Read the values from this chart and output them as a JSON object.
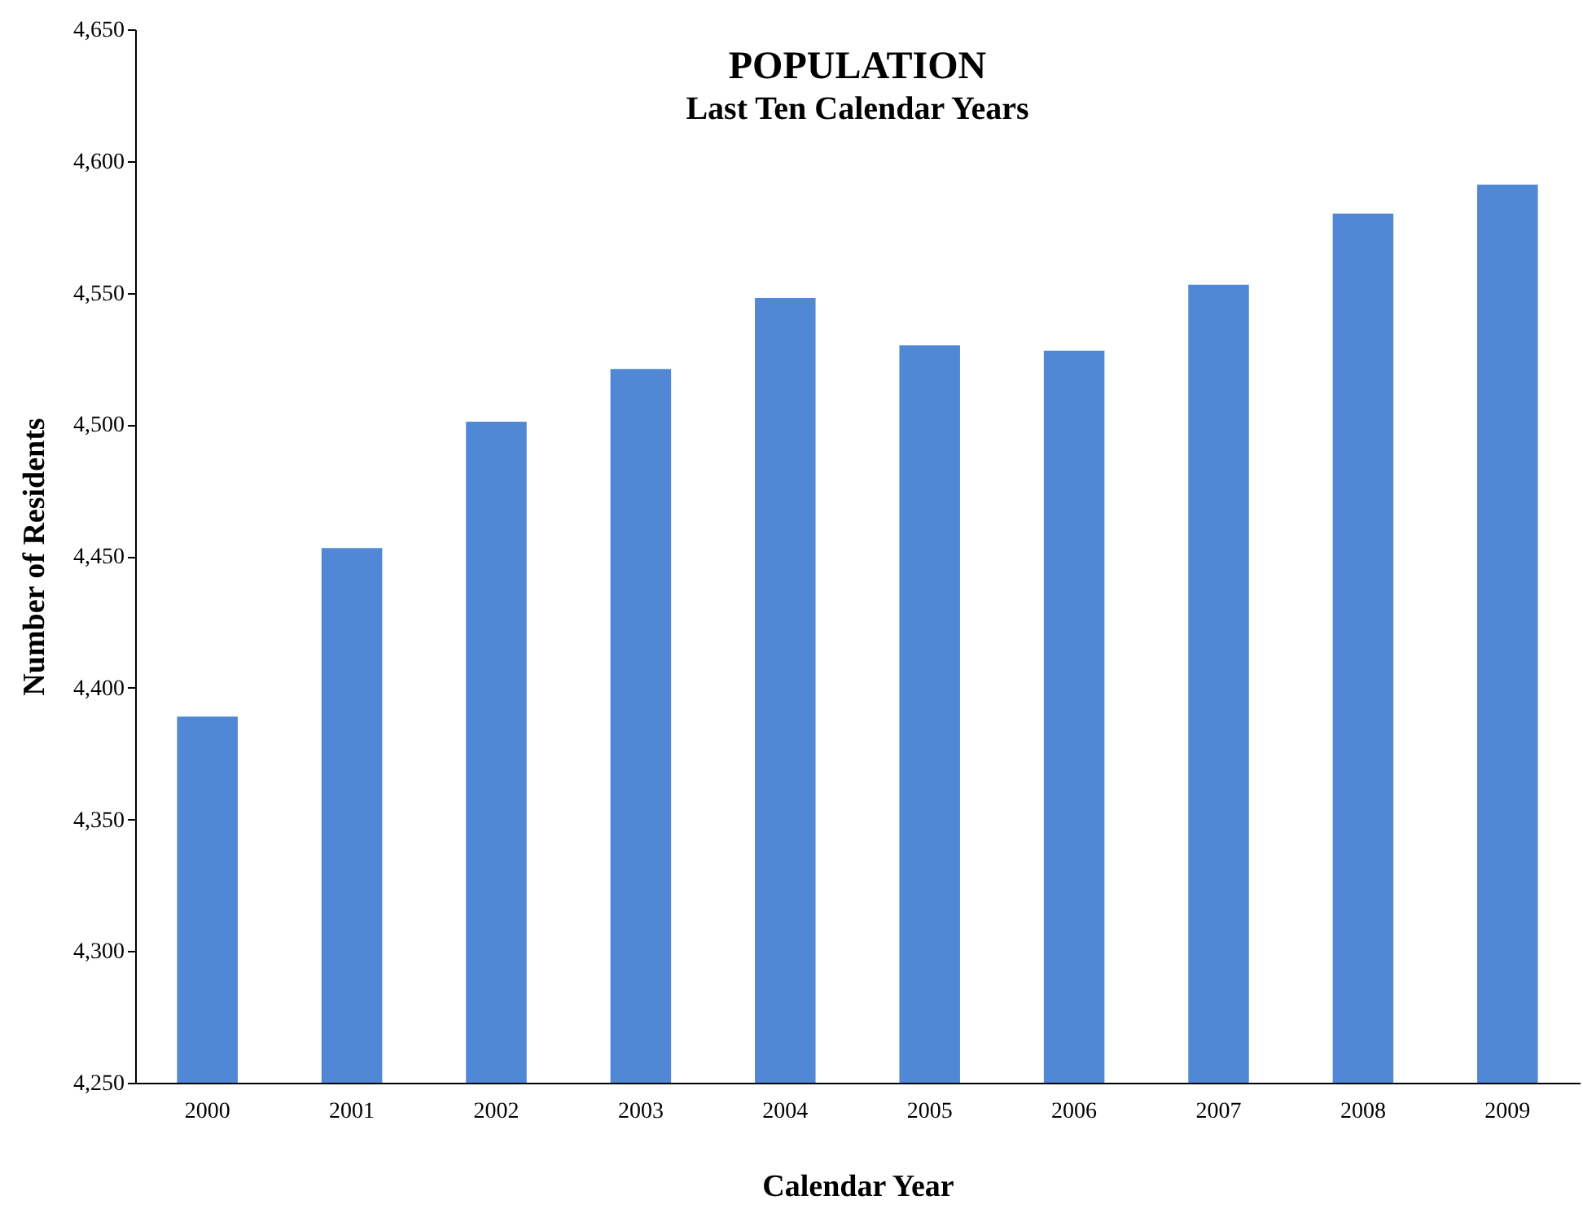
{
  "chart_data": {
    "type": "bar",
    "title": "POPULATION",
    "subtitle": "Last Ten Calendar Years",
    "xlabel": "Calendar Year",
    "ylabel": "Number of Residents",
    "categories": [
      "2000",
      "2001",
      "2002",
      "2003",
      "2004",
      "2005",
      "2006",
      "2007",
      "2008",
      "2009"
    ],
    "series": [
      {
        "color": "#5088d6",
        "values": [
          4389,
          4453,
          4501,
          4521,
          4548,
          4530,
          4528,
          4553,
          4580,
          4591
        ]
      }
    ],
    "ylim": [
      4250,
      4650
    ],
    "yticks": [
      {
        "value": 4250,
        "label": "4,250"
      },
      {
        "value": 4300,
        "label": "4,300"
      },
      {
        "value": 4350,
        "label": "4,350"
      },
      {
        "value": 4400,
        "label": "4,400"
      },
      {
        "value": 4450,
        "label": "4,450"
      },
      {
        "value": 4500,
        "label": "4,500"
      },
      {
        "value": 4550,
        "label": "4,550"
      },
      {
        "value": 4600,
        "label": "4,600"
      },
      {
        "value": 4650,
        "label": "4,650"
      }
    ],
    "grid": false,
    "legend": false
  }
}
